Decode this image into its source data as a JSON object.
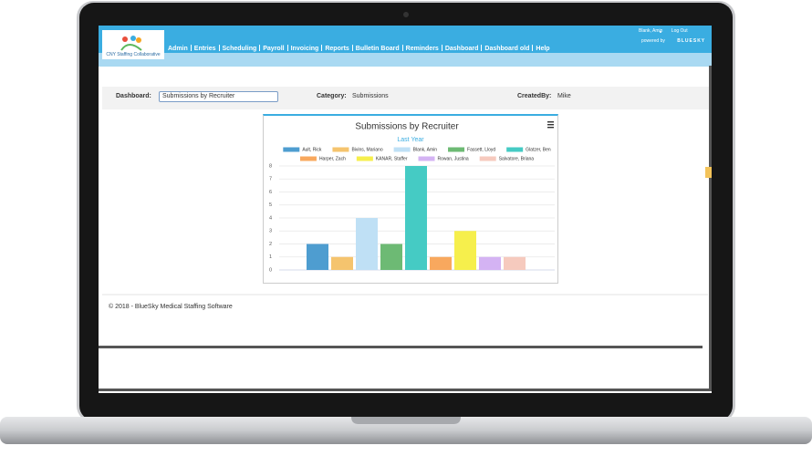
{
  "app": {
    "logo": "CNY Staffing Collaborative",
    "nav": [
      "Admin",
      "Entries",
      "Scheduling",
      "Payroll",
      "Invoicing",
      "Reports",
      "Bulletin Board",
      "Reminders",
      "Dashboard",
      "Dashboard old",
      "Help"
    ],
    "user": "Blank, Amin",
    "logout": "Log Out",
    "powered_by": "powered by",
    "brand": "BLUESKY",
    "filters": {
      "dashboard_label": "Dashboard:",
      "dashboard_value": "Submissions by Recruiter",
      "category_label": "Category:",
      "category_value": "Submissions",
      "created_label": "CreatedBy:",
      "created_value": "Mike"
    },
    "footer": "© 2018 - BlueSky Medical Staffing Software"
  },
  "chart_data": {
    "type": "bar",
    "title": "Submissions by Recruiter",
    "subtitle": "Last Year",
    "series": [
      {
        "name": "Ault, Rick",
        "color": "#4e9dd0",
        "values": [
          2
        ]
      },
      {
        "name": "Bivins, Mariano",
        "color": "#f5c46e",
        "values": [
          1
        ]
      },
      {
        "name": "Blank, Amin",
        "color": "#bfe0f5",
        "values": [
          4
        ]
      },
      {
        "name": "Fassett, Lloyd",
        "color": "#6dba74",
        "values": [
          2
        ]
      },
      {
        "name": "Glatzer, Ben",
        "color": "#45cbc4",
        "values": [
          8
        ]
      },
      {
        "name": "Harper, Zach",
        "color": "#f8a85e",
        "values": [
          1
        ]
      },
      {
        "name": "KANAR, Staffer",
        "color": "#f6ef4c",
        "values": [
          3
        ]
      },
      {
        "name": "Rowan, Justina",
        "color": "#d4b3f3",
        "values": [
          1
        ]
      },
      {
        "name": "Salvatore, Briana",
        "color": "#f6cabe",
        "values": [
          1
        ]
      }
    ],
    "ylim": [
      0,
      8
    ],
    "yticks": [
      0,
      1,
      2,
      3,
      4,
      5,
      6,
      7,
      8
    ],
    "grid": true
  }
}
